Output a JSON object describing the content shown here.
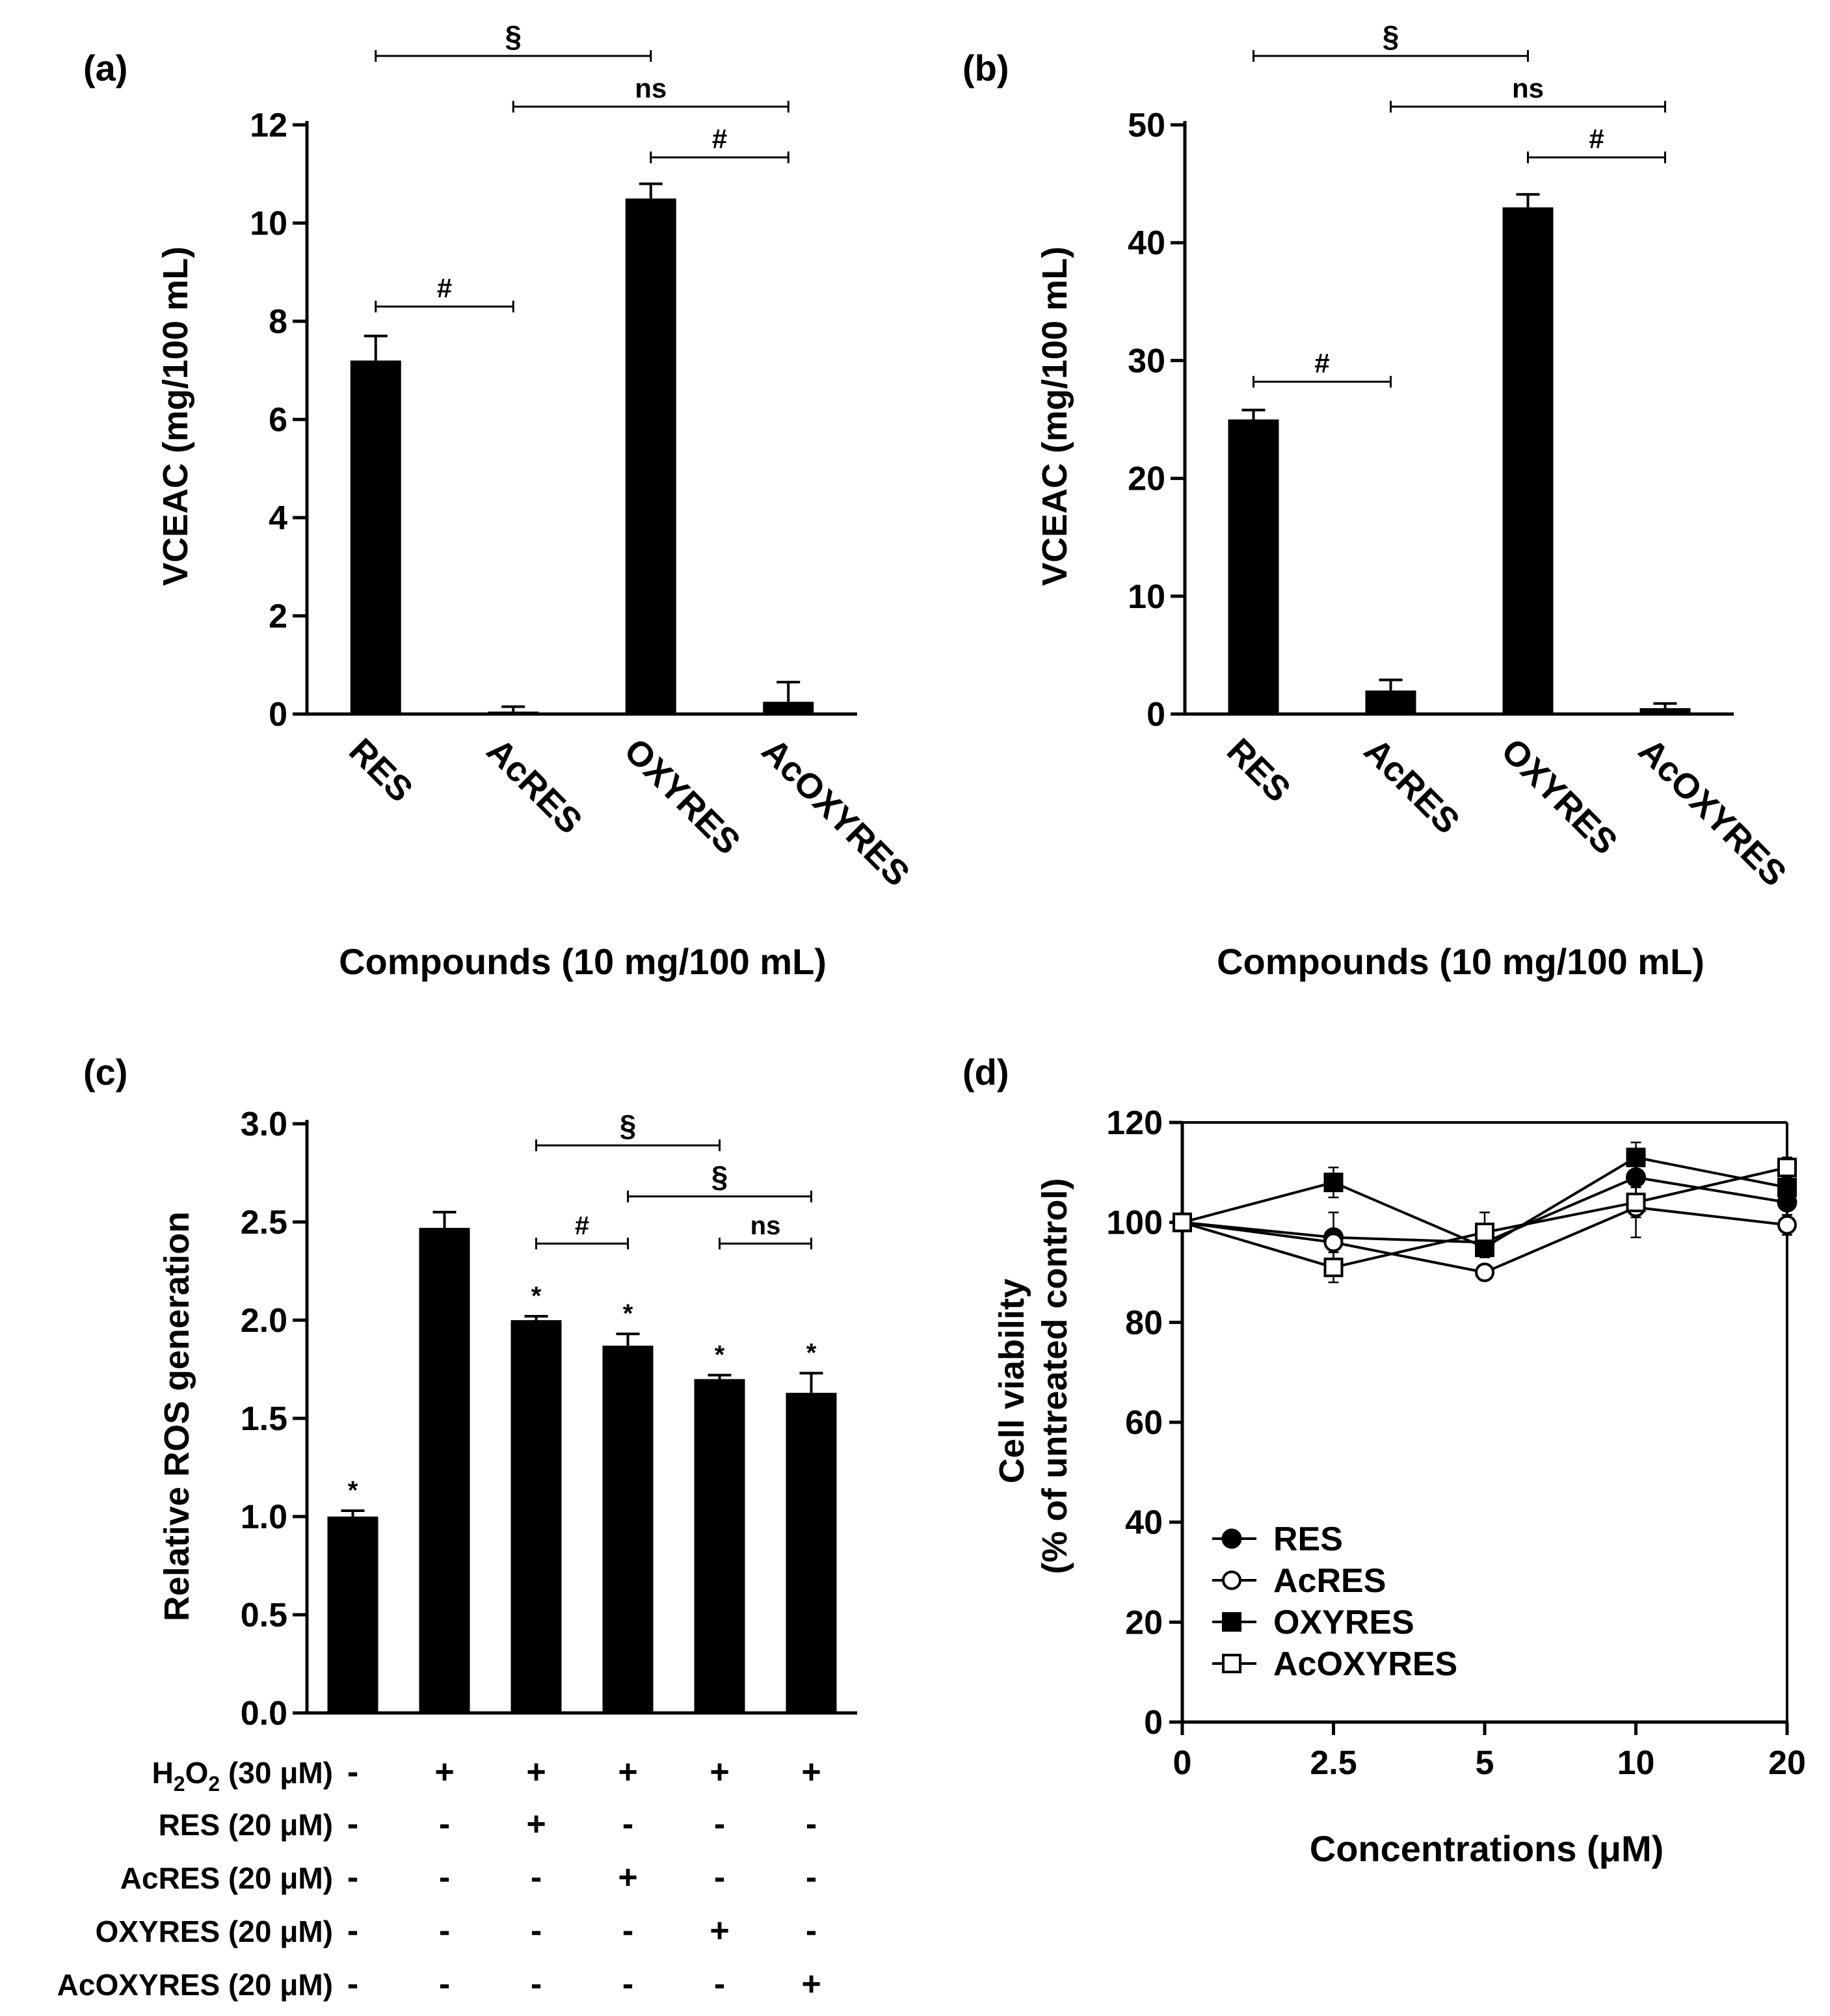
{
  "chart_data": [
    {
      "type": "bar",
      "panel_label": "(a)",
      "categories": [
        "RES",
        "AcRES",
        "OXYRES",
        "AcOXYRES"
      ],
      "values": [
        7.2,
        0.05,
        10.5,
        0.25
      ],
      "errors": [
        0.5,
        0.1,
        0.3,
        0.4
      ],
      "xlabel": "Compounds (10 mg/100 mL)",
      "ylabel": "VCEAC (mg/100 mL)",
      "ylim": [
        0,
        12
      ],
      "yticks": [
        "0",
        "2",
        "4",
        "6",
        "8",
        "10",
        "12"
      ],
      "annotations": [
        {
          "from": 0,
          "to": 2,
          "label": "§",
          "level": 0
        },
        {
          "from": 1,
          "to": 3,
          "label": "ns",
          "level": 1
        },
        {
          "from": 2,
          "to": 3,
          "label": "#",
          "level": 2
        },
        {
          "from": 0,
          "to": 1,
          "label": "#",
          "value": 8.3
        }
      ]
    },
    {
      "type": "bar",
      "panel_label": "(b)",
      "categories": [
        "RES",
        "AcRES",
        "OXYRES",
        "AcOXYRES"
      ],
      "values": [
        25,
        2,
        43,
        0.5
      ],
      "errors": [
        0.8,
        0.9,
        1.1,
        0.4
      ],
      "xlabel": "Compounds (10 mg/100 mL)",
      "ylabel": "VCEAC (mg/100 mL)",
      "ylim": [
        0,
        50
      ],
      "yticks": [
        "0",
        "10",
        "20",
        "30",
        "40",
        "50"
      ],
      "annotations": [
        {
          "from": 0,
          "to": 2,
          "label": "§",
          "level": 0
        },
        {
          "from": 1,
          "to": 3,
          "label": "ns",
          "level": 1
        },
        {
          "from": 2,
          "to": 3,
          "label": "#",
          "level": 2
        },
        {
          "from": 0,
          "to": 1,
          "label": "#",
          "value": 28.2
        }
      ]
    },
    {
      "type": "bar",
      "panel_label": "(c)",
      "values": [
        1.0,
        2.47,
        2.0,
        1.87,
        1.7,
        1.63
      ],
      "errors": [
        0.03,
        0.08,
        0.02,
        0.06,
        0.02,
        0.1
      ],
      "stars": [
        "*",
        "",
        "*",
        "*",
        "*",
        "*"
      ],
      "ylabel": "Relative ROS generation",
      "ylim": [
        0,
        3
      ],
      "yticks": [
        "0.0",
        "0.5",
        "1.0",
        "1.5",
        "2.0",
        "2.5",
        "3.0"
      ],
      "annotations": [
        {
          "from": 2,
          "to": 4,
          "label": "§",
          "value": 2.89
        },
        {
          "from": 3,
          "to": 5,
          "label": "§",
          "value": 2.63
        },
        {
          "from": 2,
          "to": 3,
          "label": "#",
          "value": 2.39
        },
        {
          "from": 4,
          "to": 5,
          "label": "ns",
          "value": 2.39
        }
      ],
      "treatment_rows": [
        {
          "label_main": "H",
          "label_sub1": "2",
          "label_mid": "O",
          "label_sub2": "2",
          "label_tail": " (30 μM)",
          "marks": [
            "-",
            "+",
            "+",
            "+",
            "+",
            "+"
          ]
        },
        {
          "label_main": "RES (20 μM)",
          "marks": [
            "-",
            "-",
            "+",
            "-",
            "-",
            "-"
          ]
        },
        {
          "label_main": "AcRES (20 μM)",
          "marks": [
            "-",
            "-",
            "-",
            "+",
            "-",
            "-"
          ]
        },
        {
          "label_main": "OXYRES (20 μM)",
          "marks": [
            "-",
            "-",
            "-",
            "-",
            "+",
            "-"
          ]
        },
        {
          "label_main": "AcOXYRES (20 μM)",
          "marks": [
            "-",
            "-",
            "-",
            "-",
            "-",
            "+"
          ]
        }
      ]
    },
    {
      "type": "line",
      "panel_label": "(d)",
      "x": [
        0,
        2.5,
        5,
        10,
        20
      ],
      "xticks": [
        "0",
        "2.5",
        "5",
        "10",
        "20"
      ],
      "xlabel": "Concentrations (μM)",
      "ylabel_line1": "Cell viability",
      "ylabel_line2": "(% of untreated control)",
      "ylim": [
        0,
        120
      ],
      "yticks": [
        "0",
        "20",
        "40",
        "60",
        "80",
        "100",
        "120"
      ],
      "legend_position": "bottom-left",
      "series": [
        {
          "name": "RES",
          "marker": "filled-circle",
          "values": [
            100,
            97,
            96,
            109,
            104
          ],
          "errors": [
            0,
            5,
            1.5,
            4,
            2.5
          ]
        },
        {
          "name": "AcRES",
          "marker": "open-circle",
          "values": [
            100,
            96,
            90,
            103,
            99.5
          ],
          "errors": [
            0,
            2,
            1.5,
            6,
            2
          ]
        },
        {
          "name": "OXYRES",
          "marker": "filled-square",
          "values": [
            100,
            108,
            95,
            113,
            107
          ],
          "errors": [
            0,
            3,
            2,
            3,
            2
          ]
        },
        {
          "name": "AcOXYRES",
          "marker": "open-square",
          "values": [
            100,
            91,
            98,
            104,
            111
          ],
          "errors": [
            0,
            3,
            4,
            3,
            2
          ]
        }
      ]
    }
  ]
}
